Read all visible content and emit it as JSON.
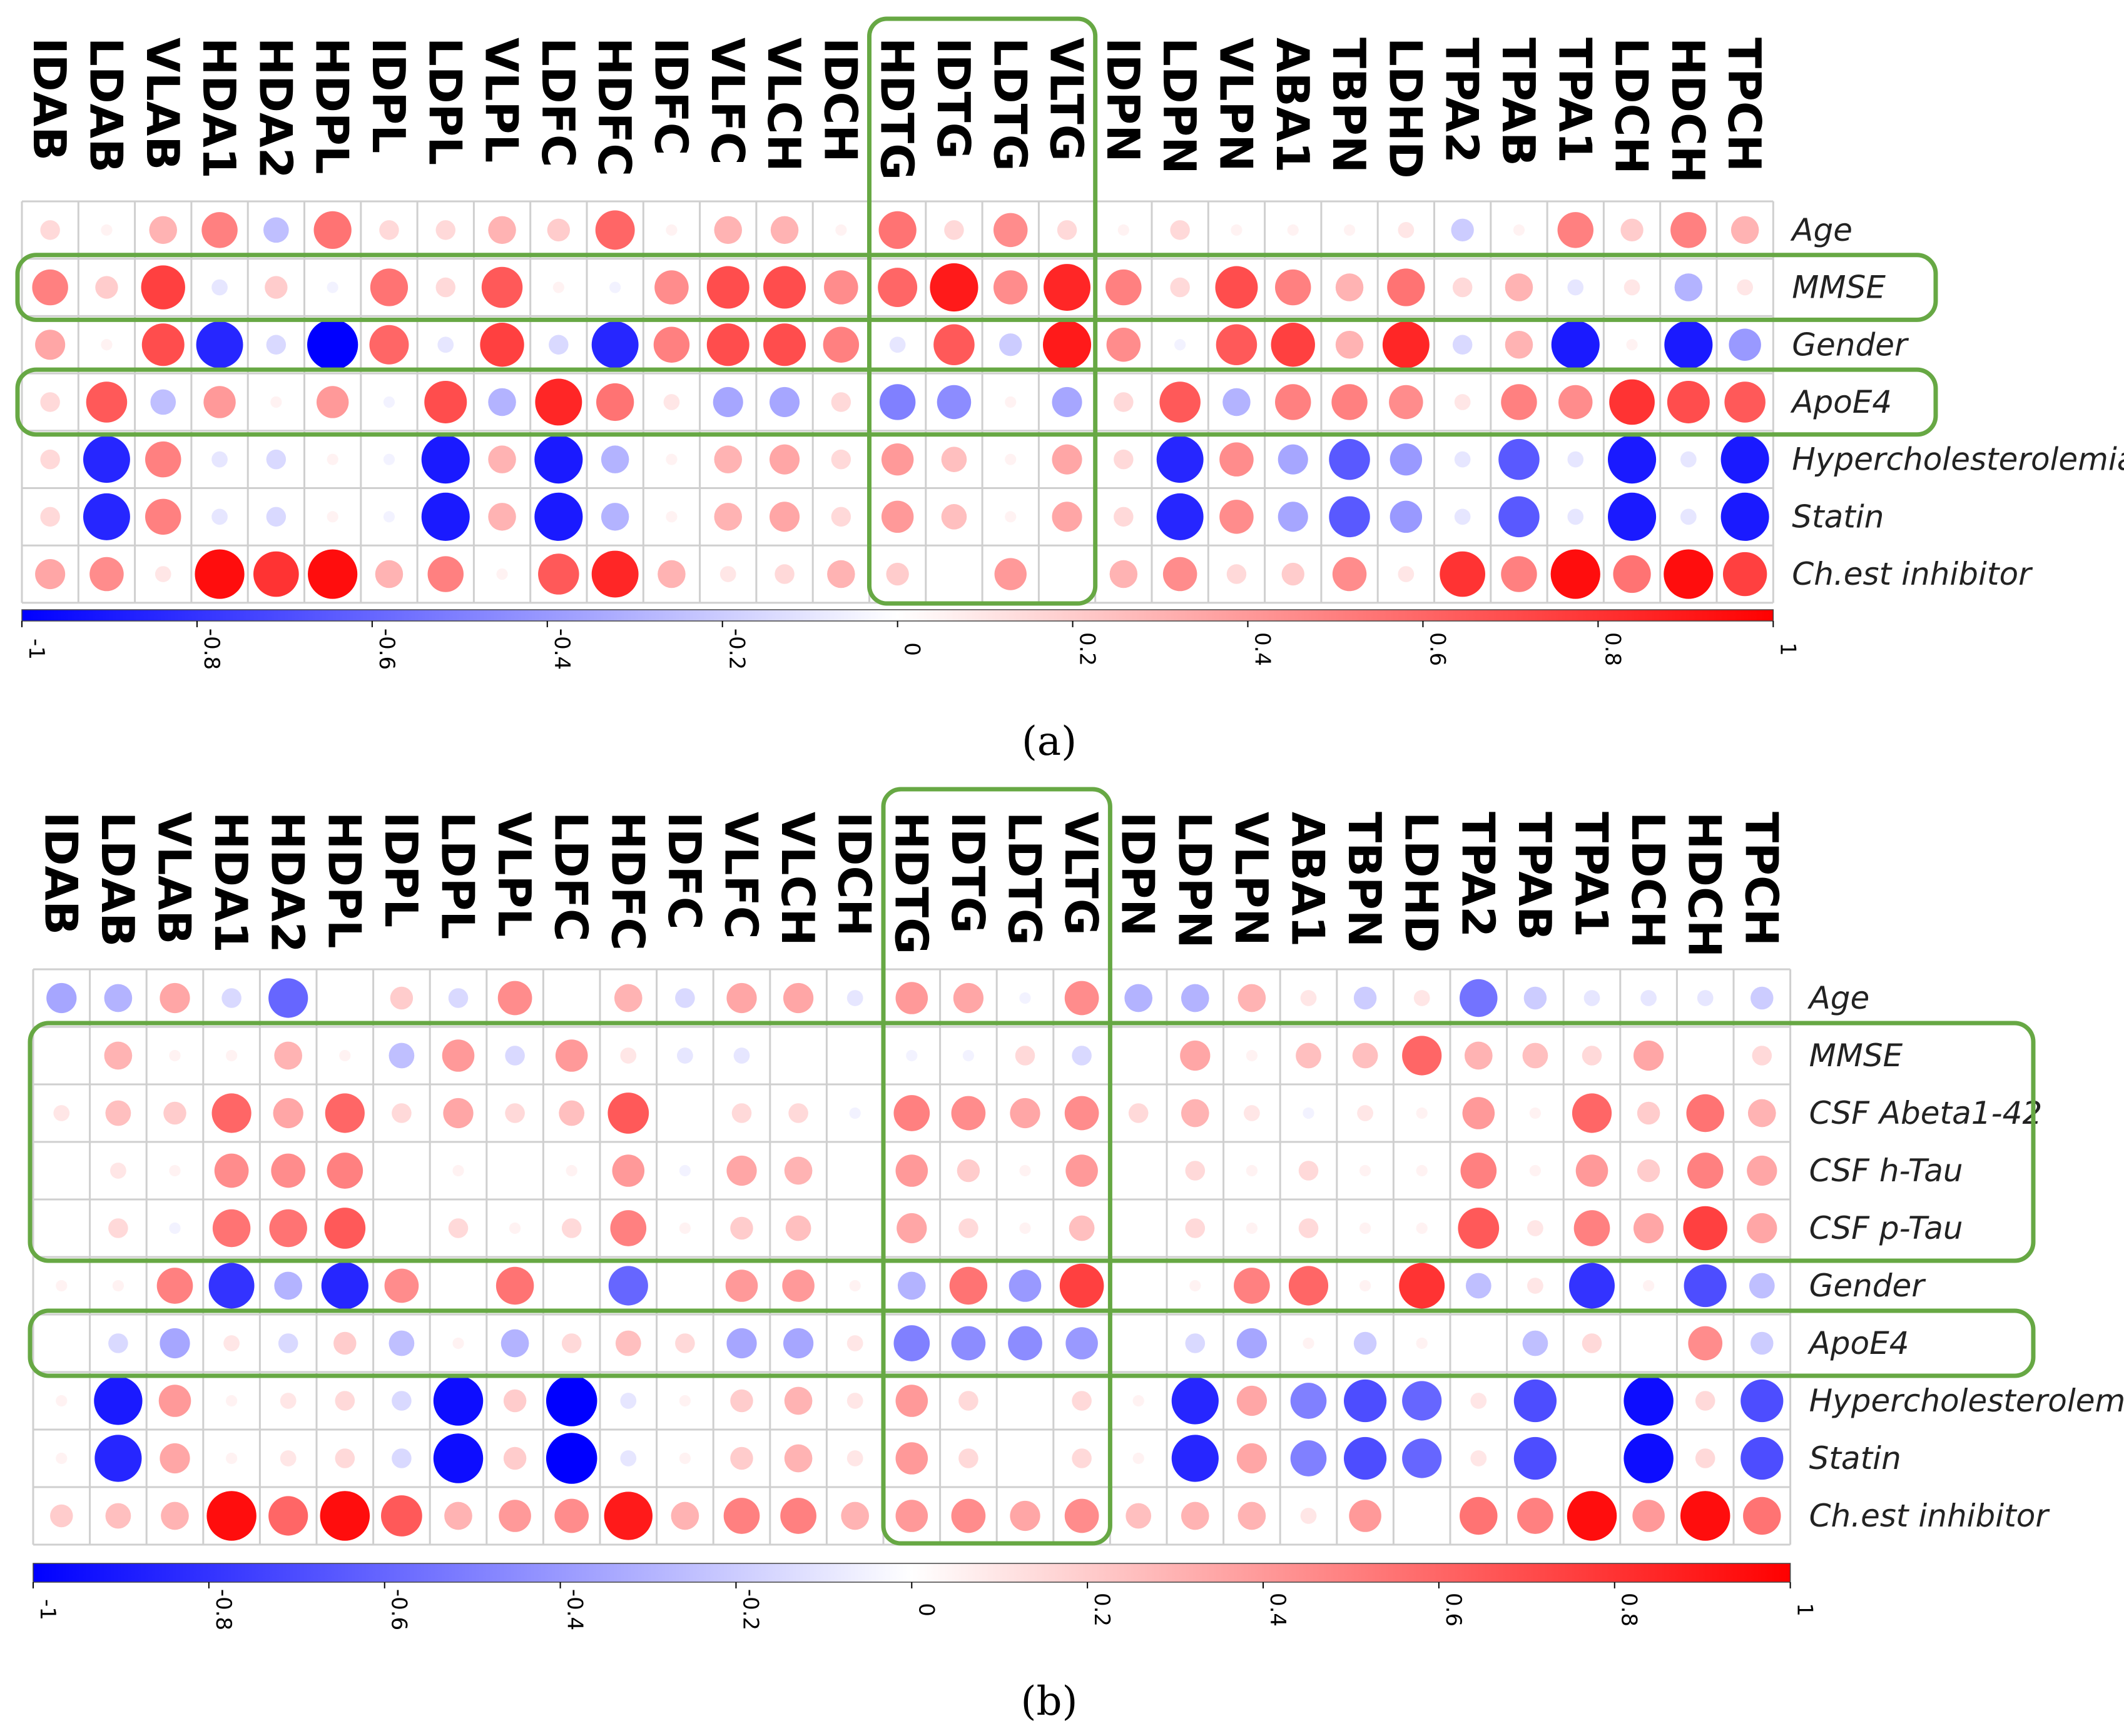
{
  "chart_data": [
    {
      "type": "heatmap",
      "caption": "(a)",
      "columns": [
        "IDAB",
        "LDAB",
        "VLAB",
        "HDA1",
        "HDA2",
        "HDPL",
        "IDPL",
        "LDPL",
        "VLPL",
        "LDFC",
        "HDFC",
        "IDFC",
        "VLFC",
        "VLCH",
        "IDCH",
        "HDTG",
        "IDTG",
        "LDTG",
        "VLTG",
        "IDPN",
        "LDPN",
        "VLPN",
        "ABA1",
        "TBPN",
        "LDHD",
        "TPA2",
        "TPAB",
        "TPA1",
        "LDCH",
        "HDCH",
        "TPCH"
      ],
      "rows": [
        "Age",
        "MMSE",
        "Gender",
        "ApoE4",
        "Hypercholesterolemia",
        "Statin",
        "Ch.est inhibitor"
      ],
      "values": [
        [
          0.15,
          0.05,
          0.3,
          0.5,
          -0.25,
          0.55,
          0.15,
          0.15,
          0.3,
          0.2,
          0.6,
          0.05,
          0.3,
          0.3,
          0.05,
          0.55,
          0.15,
          0.45,
          0.15,
          0.05,
          0.15,
          0.05,
          0.05,
          0.05,
          0.1,
          -0.2,
          0.05,
          0.5,
          0.2,
          0.5,
          0.3
        ],
        [
          0.5,
          0.2,
          0.75,
          -0.1,
          0.2,
          -0.05,
          0.55,
          0.15,
          0.65,
          0.05,
          -0.05,
          0.45,
          0.7,
          0.7,
          0.45,
          0.6,
          0.9,
          0.45,
          0.85,
          0.5,
          0.15,
          0.7,
          0.5,
          0.3,
          0.55,
          0.15,
          0.3,
          -0.1,
          0.1,
          -0.3,
          0.1
        ],
        [
          0.35,
          0.05,
          0.7,
          -0.85,
          -0.15,
          -1.0,
          0.6,
          -0.1,
          0.75,
          -0.15,
          -0.85,
          0.5,
          0.7,
          0.7,
          0.5,
          -0.1,
          0.65,
          -0.2,
          0.9,
          0.45,
          -0.05,
          0.65,
          0.75,
          0.3,
          0.85,
          -0.15,
          0.3,
          -0.9,
          0.05,
          -0.9,
          -0.4
        ],
        [
          0.15,
          0.65,
          -0.25,
          0.4,
          0.05,
          0.4,
          -0.05,
          0.7,
          -0.3,
          0.85,
          0.55,
          0.1,
          -0.35,
          -0.35,
          0.15,
          -0.5,
          -0.45,
          0.05,
          -0.35,
          0.15,
          0.65,
          -0.3,
          0.5,
          0.5,
          0.45,
          0.1,
          0.5,
          0.45,
          0.8,
          0.7,
          0.65
        ],
        [
          0.15,
          -0.85,
          0.5,
          -0.1,
          -0.15,
          0.05,
          -0.05,
          -0.9,
          0.3,
          -0.9,
          -0.3,
          0.05,
          0.3,
          0.35,
          0.15,
          0.4,
          0.25,
          0.05,
          0.35,
          0.15,
          -0.85,
          0.45,
          -0.35,
          -0.65,
          -0.4,
          -0.1,
          -0.65,
          -0.1,
          -0.9,
          -0.1,
          -0.9
        ],
        [
          0.15,
          -0.85,
          0.5,
          -0.1,
          -0.15,
          0.05,
          -0.05,
          -0.9,
          0.3,
          -0.9,
          -0.3,
          0.05,
          0.3,
          0.35,
          0.15,
          0.4,
          0.25,
          0.05,
          0.35,
          0.15,
          -0.85,
          0.45,
          -0.35,
          -0.65,
          -0.4,
          -0.1,
          -0.65,
          -0.1,
          -0.9,
          -0.1,
          -0.9
        ],
        [
          0.35,
          0.45,
          0.1,
          0.95,
          0.8,
          0.95,
          0.3,
          0.5,
          0.05,
          0.65,
          0.85,
          0.3,
          0.1,
          0.15,
          0.3,
          0.2,
          0.0,
          0.4,
          0.0,
          0.3,
          0.45,
          0.15,
          0.2,
          0.45,
          0.1,
          0.8,
          0.5,
          0.95,
          0.55,
          0.95,
          0.75
        ]
      ],
      "colorbar": {
        "min": -1,
        "max": 1,
        "ticks": [
          "-1",
          "-0.8",
          "-0.6",
          "-0.4",
          "-0.2",
          "0",
          "0.2",
          "0.4",
          "0.6",
          "0.8",
          "1"
        ],
        "low_color": "#0000ff",
        "mid_color": "#ffffff",
        "high_color": "#ff0000"
      },
      "highlighted_columns": [
        "HDTG",
        "IDTG",
        "LDTG",
        "VLTG"
      ],
      "highlighted_rows": [
        "MMSE",
        "ApoE4"
      ],
      "highlight_color": "#67a844"
    },
    {
      "type": "heatmap",
      "caption": "(b)",
      "columns": [
        "IDAB",
        "LDAB",
        "VLAB",
        "HDA1",
        "HDA2",
        "HDPL",
        "IDPL",
        "LDPL",
        "VLPL",
        "LDFC",
        "HDFC",
        "IDFC",
        "VLFC",
        "VLCH",
        "IDCH",
        "HDTG",
        "IDTG",
        "LDTG",
        "VLTG",
        "IDPN",
        "LDPN",
        "VLPN",
        "ABA1",
        "TBPN",
        "LDHD",
        "TPA2",
        "TPAB",
        "TPA1",
        "LDCH",
        "HDCH",
        "TPCH"
      ],
      "rows": [
        "Age",
        "MMSE",
        "CSF Abeta1-42",
        "CSF h-Tau",
        "CSF p-Tau",
        "Gender",
        "ApoE4",
        "Hypercholesterolemia",
        "Statin",
        "Ch.est inhibitor"
      ],
      "values": [
        [
          -0.35,
          -0.3,
          0.35,
          -0.15,
          -0.6,
          0.0,
          0.2,
          -0.15,
          0.45,
          0.0,
          0.3,
          -0.15,
          0.35,
          0.35,
          -0.1,
          0.4,
          0.35,
          -0.05,
          0.45,
          -0.3,
          -0.3,
          0.3,
          0.1,
          -0.2,
          0.1,
          -0.55,
          -0.2,
          -0.1,
          -0.1,
          -0.1,
          -0.2
        ],
        [
          0.0,
          0.3,
          0.05,
          0.05,
          0.3,
          0.05,
          -0.25,
          0.4,
          -0.15,
          0.4,
          0.1,
          -0.1,
          -0.1,
          0.0,
          0.0,
          -0.05,
          -0.05,
          0.15,
          -0.15,
          0.0,
          0.35,
          0.05,
          0.25,
          0.25,
          0.6,
          0.3,
          0.25,
          0.15,
          0.35,
          0.0,
          0.15
        ],
        [
          0.1,
          0.25,
          0.2,
          0.6,
          0.35,
          0.6,
          0.15,
          0.35,
          0.15,
          0.25,
          0.65,
          0.0,
          0.15,
          0.15,
          -0.05,
          0.5,
          0.45,
          0.35,
          0.45,
          0.15,
          0.3,
          0.1,
          -0.05,
          0.1,
          0.05,
          0.4,
          0.05,
          0.6,
          0.2,
          0.55,
          0.3
        ],
        [
          0.0,
          0.1,
          0.05,
          0.45,
          0.45,
          0.5,
          0.0,
          0.05,
          0.0,
          0.05,
          0.4,
          -0.05,
          0.35,
          0.3,
          0.0,
          0.4,
          0.2,
          0.05,
          0.4,
          0.0,
          0.15,
          0.05,
          0.15,
          0.05,
          0.05,
          0.5,
          0.05,
          0.4,
          0.2,
          0.5,
          0.35
        ],
        [
          0.0,
          0.15,
          -0.05,
          0.55,
          0.55,
          0.65,
          0.0,
          0.15,
          0.05,
          0.15,
          0.5,
          0.05,
          0.2,
          0.25,
          0.0,
          0.35,
          0.15,
          0.05,
          0.25,
          0.0,
          0.15,
          0.05,
          0.15,
          0.05,
          0.05,
          0.65,
          0.1,
          0.5,
          0.35,
          0.75,
          0.35
        ],
        [
          0.05,
          0.05,
          0.5,
          -0.8,
          -0.3,
          -0.85,
          0.45,
          0.0,
          0.55,
          0.0,
          -0.6,
          0.0,
          0.4,
          0.4,
          0.05,
          -0.3,
          0.55,
          -0.4,
          0.75,
          0.0,
          0.05,
          0.5,
          0.6,
          0.05,
          0.8,
          -0.25,
          0.1,
          -0.8,
          0.05,
          -0.7,
          -0.25
        ],
        [
          0.0,
          -0.15,
          -0.35,
          0.1,
          -0.15,
          0.2,
          -0.25,
          0.05,
          -0.3,
          0.15,
          0.25,
          0.15,
          -0.35,
          -0.35,
          0.1,
          -0.5,
          -0.45,
          -0.45,
          -0.4,
          0.0,
          -0.15,
          -0.35,
          0.05,
          -0.2,
          0.05,
          0.0,
          -0.25,
          0.15,
          0.0,
          0.45,
          -0.2
        ],
        [
          0.05,
          -0.9,
          0.4,
          0.05,
          0.1,
          0.15,
          -0.15,
          -0.95,
          0.2,
          -1.0,
          -0.1,
          0.05,
          0.2,
          0.3,
          0.1,
          0.4,
          0.15,
          0.0,
          0.15,
          0.05,
          -0.85,
          0.35,
          -0.5,
          -0.7,
          -0.6,
          0.1,
          -0.7,
          0.0,
          -0.95,
          0.15,
          -0.7
        ],
        [
          0.05,
          -0.85,
          0.35,
          0.05,
          0.1,
          0.15,
          -0.15,
          -0.95,
          0.2,
          -1.0,
          -0.1,
          0.05,
          0.2,
          0.3,
          0.1,
          0.4,
          0.15,
          0.0,
          0.15,
          0.05,
          -0.85,
          0.35,
          -0.5,
          -0.7,
          -0.6,
          0.1,
          -0.7,
          0.0,
          -0.95,
          0.15,
          -0.7
        ],
        [
          0.2,
          0.25,
          0.3,
          0.95,
          0.6,
          0.95,
          0.65,
          0.3,
          0.4,
          0.45,
          0.9,
          0.3,
          0.5,
          0.5,
          0.3,
          0.4,
          0.45,
          0.35,
          0.45,
          0.25,
          0.3,
          0.3,
          0.1,
          0.4,
          0.0,
          0.55,
          0.5,
          0.95,
          0.4,
          0.95,
          0.55
        ]
      ],
      "colorbar": {
        "min": -1,
        "max": 1,
        "ticks": [
          "-1",
          "-0.8",
          "-0.6",
          "-0.4",
          "-0.2",
          "0",
          "0.2",
          "0.4",
          "0.6",
          "0.8",
          "1"
        ],
        "low_color": "#0000ff",
        "mid_color": "#ffffff",
        "high_color": "#ff0000"
      },
      "highlighted_columns": [
        "HDTG",
        "IDTG",
        "LDTG",
        "VLTG"
      ],
      "highlighted_rows": [
        "MMSE",
        "CSF Abeta1-42",
        "CSF h-Tau",
        "CSF p-Tau",
        "ApoE4"
      ],
      "highlight_color": "#67a844"
    }
  ]
}
